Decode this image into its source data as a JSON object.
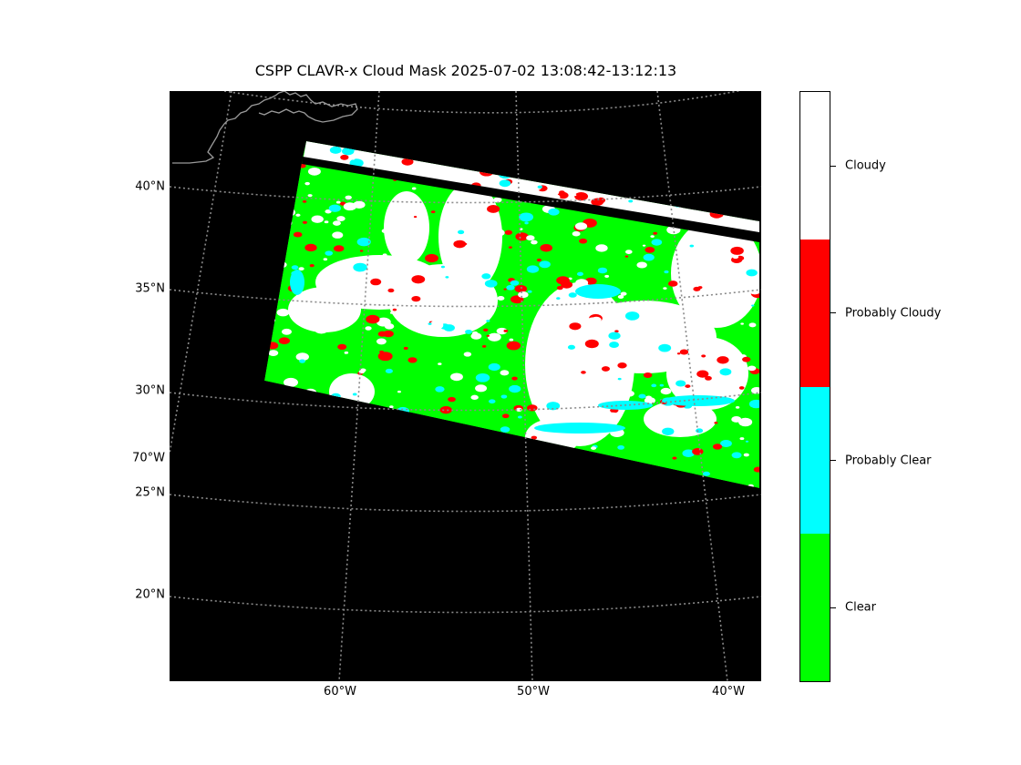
{
  "title": "CSPP CLAVR-x Cloud Mask 2025-07-02 13:08:42-13:12:13",
  "map": {
    "background_color": "#000000",
    "graticule_color": "#8a8a8a",
    "coastline_color": "#9a9a9a",
    "lat_labels": [
      "40°N",
      "35°N",
      "30°N",
      "25°N",
      "20°N"
    ],
    "extra_lon_label": "70°W",
    "lon_labels": [
      "60°W",
      "50°W",
      "40°W"
    ]
  },
  "colorbar": {
    "categories": [
      {
        "label": "Cloudy",
        "color": "#ffffff"
      },
      {
        "label": "Probably Cloudy",
        "color": "#ff0000"
      },
      {
        "label": "Probably Clear",
        "color": "#00ffff"
      },
      {
        "label": "Clear",
        "color": "#00ff00"
      }
    ]
  }
}
